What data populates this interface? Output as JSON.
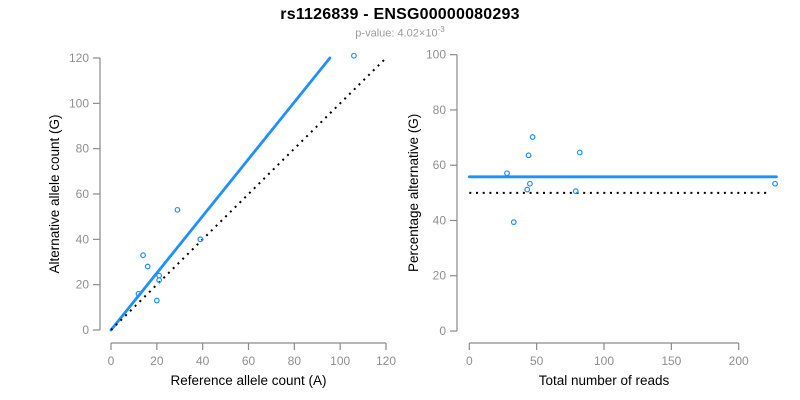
{
  "header": {
    "title": "rs1126839 - ENSG00000080293",
    "subtitle_prefix": "p-value: 4.02×10",
    "subtitle_exponent": "-3"
  },
  "colors": {
    "accent_blue": "#1E90FF",
    "axis_gray": "#8a8a8a",
    "tick_label_gray": "#8f8f8f",
    "axis_title_black": "#000000",
    "dotted_line_black": "#000000"
  },
  "chart_data": [
    {
      "type": "scatter",
      "panel": "left",
      "xlabel": "Reference allele count (A)",
      "ylabel": "Alternative allele count (G)",
      "xlim": [
        0,
        120
      ],
      "ylim": [
        0,
        120
      ],
      "xticks": [
        0,
        20,
        40,
        60,
        80,
        100,
        120
      ],
      "yticks": [
        0,
        20,
        40,
        60,
        80,
        100,
        120
      ],
      "grid": false,
      "points": [
        [
          106,
          121
        ],
        [
          29,
          53
        ],
        [
          39,
          40
        ],
        [
          14,
          33
        ],
        [
          16,
          28
        ],
        [
          21,
          24
        ],
        [
          21,
          22
        ],
        [
          12,
          16
        ],
        [
          20,
          13
        ]
      ],
      "lines": [
        {
          "name": "fit-line",
          "style": "solid",
          "color_key": "accent_blue",
          "x1": 0,
          "y1": 0,
          "x2": 95.5,
          "y2": 120
        },
        {
          "name": "identity-line",
          "style": "dotted",
          "color_key": "dotted_line_black",
          "x1": 0,
          "y1": 0,
          "x2": 120,
          "y2": 120
        }
      ]
    },
    {
      "type": "scatter",
      "panel": "right",
      "xlabel": "Total number of reads",
      "ylabel": "Percentage alternative (G)",
      "xlim": [
        0,
        230
      ],
      "ylim": [
        0,
        100
      ],
      "xticks": [
        0,
        50,
        100,
        150,
        200
      ],
      "yticks": [
        0,
        20,
        40,
        60,
        80,
        100
      ],
      "grid": false,
      "points": [
        [
          227,
          53.3
        ],
        [
          82,
          64.6
        ],
        [
          79,
          50.6
        ],
        [
          47,
          70.2
        ],
        [
          44,
          63.6
        ],
        [
          45,
          53.3
        ],
        [
          43,
          51.2
        ],
        [
          28,
          57.1
        ],
        [
          33,
          39.4
        ]
      ],
      "lines": [
        {
          "name": "fit-line",
          "style": "solid",
          "color_key": "accent_blue",
          "x1": 0,
          "y1": 55.8,
          "x2": 228,
          "y2": 55.8
        },
        {
          "name": "null-line",
          "style": "dotted",
          "color_key": "dotted_line_black",
          "x1": 0,
          "y1": 50,
          "x2": 222,
          "y2": 50
        }
      ]
    }
  ]
}
